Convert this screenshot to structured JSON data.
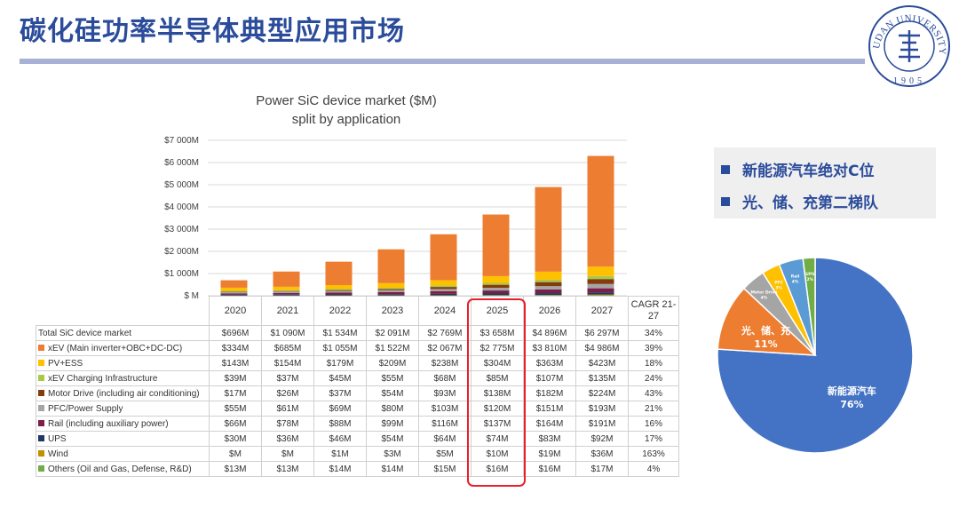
{
  "page": {
    "title": "碳化硅功率半导体典型应用市场",
    "logo_text": "FUDAN UNIVERSITY",
    "logo_year": "1905"
  },
  "bullets": [
    "新能源汽车绝对C位",
    "光、储、充第二梯队"
  ],
  "colors": {
    "accent": "#2b4c9b",
    "highlight": "#e8202a"
  },
  "chart_data": [
    {
      "type": "bar",
      "stacked": true,
      "title": "Power SiC device market ($M)",
      "subtitle": "split by application",
      "categories": [
        "2020",
        "2021",
        "2022",
        "2023",
        "2024",
        "2025",
        "2026",
        "2027"
      ],
      "y_ticks": [
        "$ M",
        "$1 000M",
        "$2 000M",
        "$3 000M",
        "$4 000M",
        "$5 000M",
        "$6 000M",
        "$7 000M"
      ],
      "ylim": [
        0,
        7000
      ],
      "grid": true,
      "cagr_header": "CAGR 21-27",
      "total": {
        "name": "Total SiC device market",
        "labels": [
          "$696M",
          "$1 090M",
          "$1 534M",
          "$2 091M",
          "$2 769M",
          "$3 658M",
          "$4 896M",
          "$6 297M"
        ],
        "cagr": "34%"
      },
      "series": [
        {
          "name": "xEV (Main inverter+OBC+DC-DC)",
          "color": "#ed7d31",
          "values": [
            334,
            685,
            1055,
            1522,
            2067,
            2775,
            3810,
            4986
          ],
          "labels": [
            "$334M",
            "$685M",
            "$1 055M",
            "$1 522M",
            "$2 067M",
            "$2 775M",
            "$3 810M",
            "$4 986M"
          ],
          "cagr": "39%"
        },
        {
          "name": "PV+ESS",
          "color": "#ffc000",
          "values": [
            143,
            154,
            179,
            209,
            238,
            304,
            363,
            423
          ],
          "labels": [
            "$143M",
            "$154M",
            "$179M",
            "$209M",
            "$238M",
            "$304M",
            "$363M",
            "$423M"
          ],
          "cagr": "18%"
        },
        {
          "name": "xEV Charging Infrastructure",
          "color": "#a9c84a",
          "values": [
            39,
            37,
            45,
            55,
            68,
            85,
            107,
            135
          ],
          "labels": [
            "$39M",
            "$37M",
            "$45M",
            "$55M",
            "$68M",
            "$85M",
            "$107M",
            "$135M"
          ],
          "cagr": "24%"
        },
        {
          "name": "Motor Drive (including air conditioning)",
          "color": "#843c0c",
          "values": [
            17,
            26,
            37,
            54,
            93,
            138,
            182,
            224
          ],
          "labels": [
            "$17M",
            "$26M",
            "$37M",
            "$54M",
            "$93M",
            "$138M",
            "$182M",
            "$224M"
          ],
          "cagr": "43%"
        },
        {
          "name": "PFC/Power Supply",
          "color": "#a5a5a5",
          "values": [
            55,
            61,
            69,
            80,
            103,
            120,
            151,
            193
          ],
          "labels": [
            "$55M",
            "$61M",
            "$69M",
            "$80M",
            "$103M",
            "$120M",
            "$151M",
            "$193M"
          ],
          "cagr": "21%"
        },
        {
          "name": "Rail (including auxiliary power)",
          "color": "#7b1f4a",
          "values": [
            66,
            78,
            88,
            99,
            116,
            137,
            164,
            191
          ],
          "labels": [
            "$66M",
            "$78M",
            "$88M",
            "$99M",
            "$116M",
            "$137M",
            "$164M",
            "$191M"
          ],
          "cagr": "16%"
        },
        {
          "name": "UPS",
          "color": "#1f3864",
          "values": [
            30,
            36,
            46,
            54,
            64,
            74,
            83,
            92
          ],
          "labels": [
            "$30M",
            "$36M",
            "$46M",
            "$54M",
            "$64M",
            "$74M",
            "$83M",
            "$92M"
          ],
          "cagr": "17%"
        },
        {
          "name": "Wind",
          "color": "#bf9000",
          "values": [
            0,
            0,
            1,
            3,
            5,
            10,
            19,
            36
          ],
          "labels": [
            "$M",
            "$M",
            "$1M",
            "$3M",
            "$5M",
            "$10M",
            "$19M",
            "$36M"
          ],
          "cagr": "163%"
        },
        {
          "name": "Others (Oil and Gas, Defense, R&D)",
          "color": "#70ad47",
          "values": [
            13,
            13,
            14,
            14,
            15,
            16,
            16,
            17
          ],
          "labels": [
            "$13M",
            "$13M",
            "$14M",
            "$14M",
            "$15M",
            "$16M",
            "$16M",
            "$17M"
          ],
          "cagr": "4%"
        }
      ],
      "highlighted_category": "2025"
    },
    {
      "type": "pie",
      "slices": [
        {
          "label": "新能源汽车",
          "percent": "76%",
          "value": 76,
          "color": "#4472c4"
        },
        {
          "label": "光、储、充",
          "percent": "11%",
          "value": 11,
          "color": "#ed7d31"
        },
        {
          "label": "Motor Drive",
          "percent": "4%",
          "value": 4,
          "color": "#a5a5a5"
        },
        {
          "label": "PFC",
          "percent": "3%",
          "value": 3,
          "color": "#ffc000"
        },
        {
          "label": "Rail",
          "percent": "4%",
          "value": 4,
          "color": "#5b9bd5"
        },
        {
          "label": "UPS",
          "percent": "2%",
          "value": 2,
          "color": "#70ad47"
        }
      ]
    }
  ]
}
